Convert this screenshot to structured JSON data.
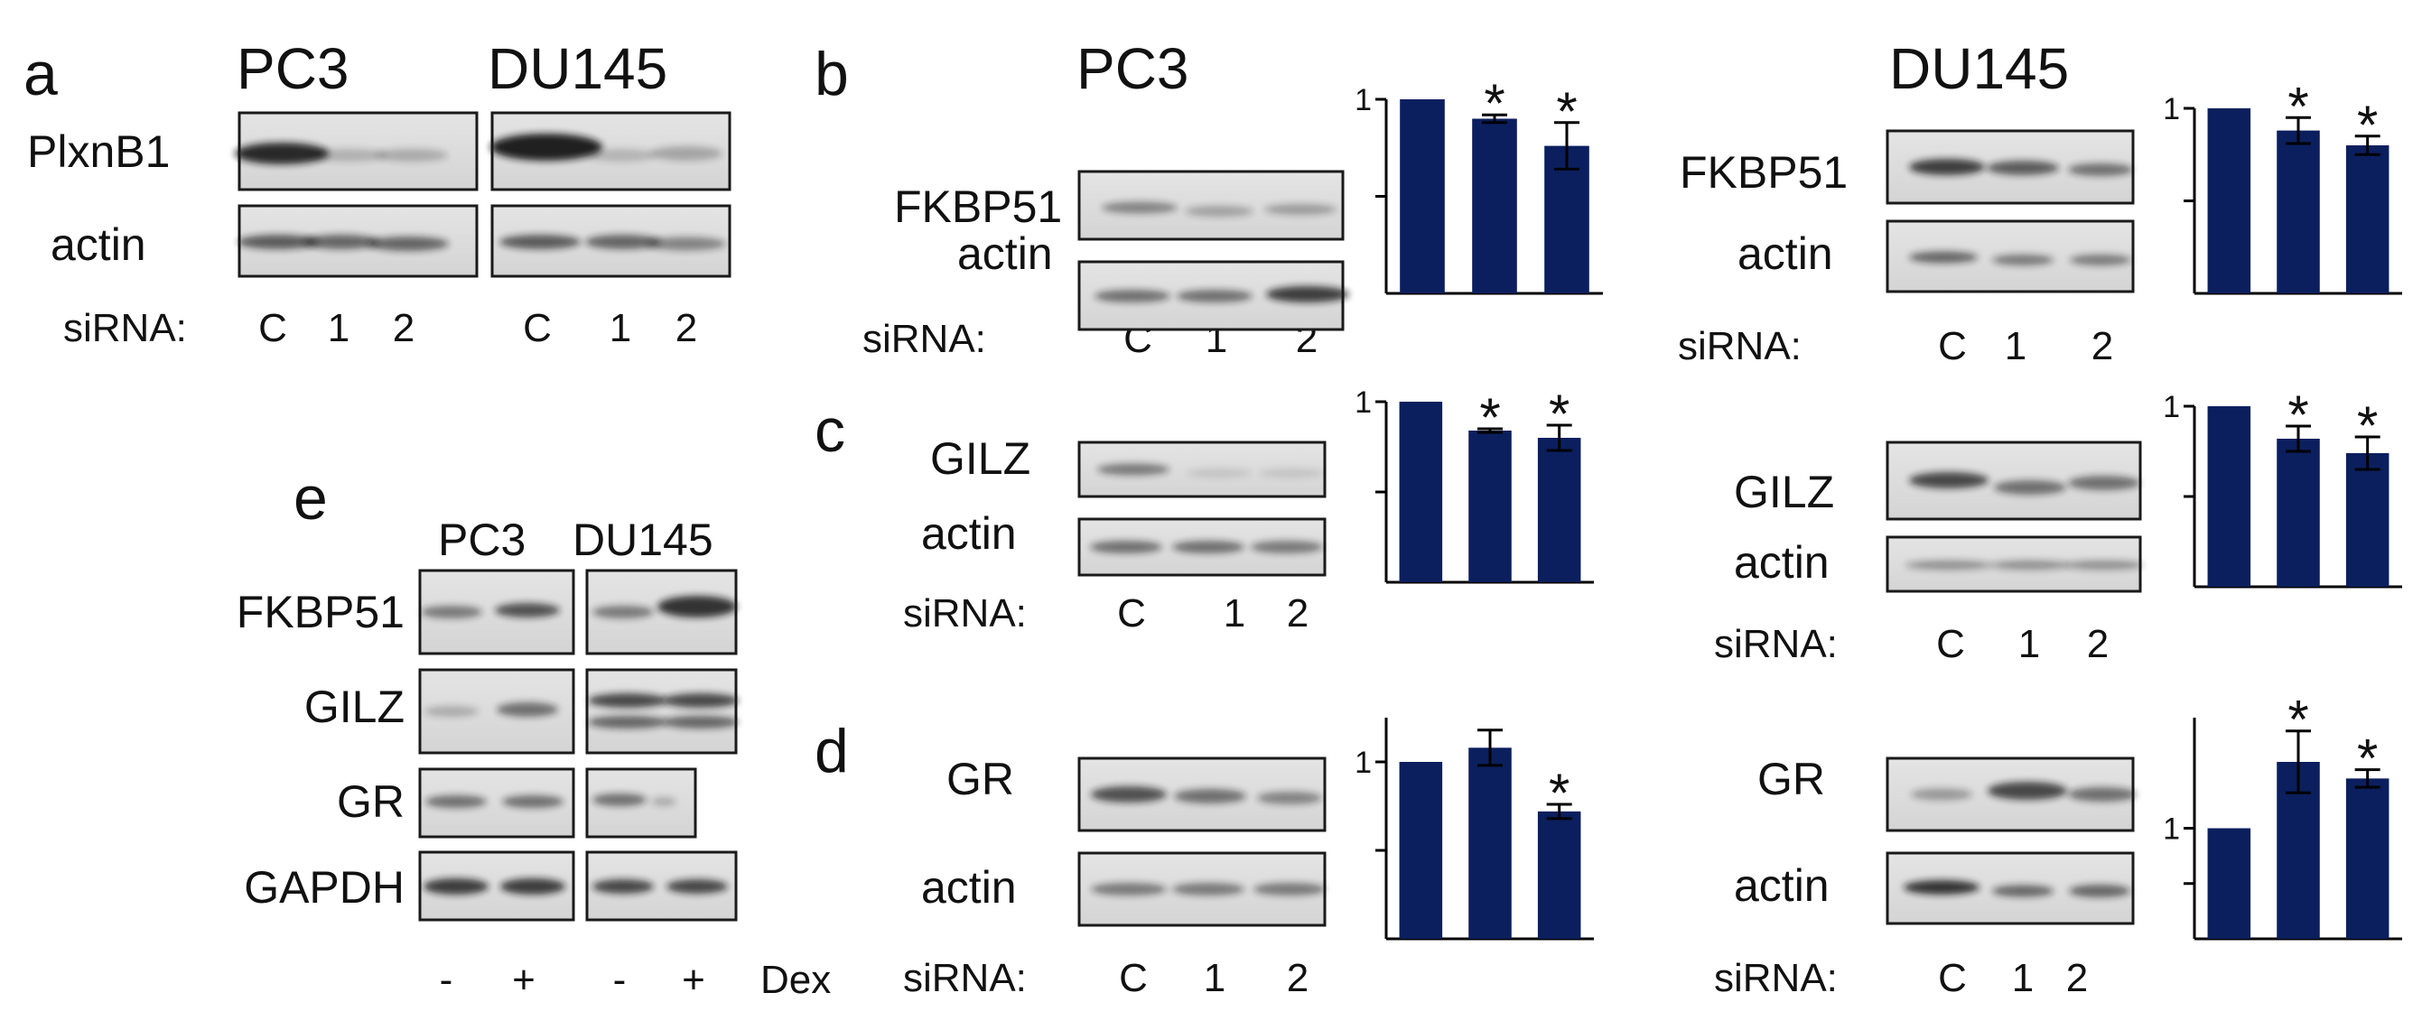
{
  "figure": {
    "panels": {
      "a": "a",
      "b": "b",
      "c": "c",
      "d": "d",
      "e": "e"
    },
    "cell_lines": {
      "pc3": "PC3",
      "du145": "DU145"
    },
    "proteins": {
      "plxnb1": "PlxnB1",
      "actin": "actin",
      "fkbp51": "FKBP51",
      "gilz": "GILZ",
      "gr": "GR",
      "gapdh": "GAPDH"
    },
    "sirna_label": "siRNA:",
    "lanes": {
      "control": "C",
      "si1": "1",
      "si2": "2"
    },
    "treatment": {
      "minus": "-",
      "plus": "+",
      "label": "Dex"
    },
    "significance_marker": "*",
    "axis_tick_one": "1"
  },
  "chart_data": [
    {
      "type": "bar",
      "panel": "b",
      "cell_line": "PC3",
      "protein": "FKBP51",
      "categories": [
        "C",
        "1",
        "2"
      ],
      "values": [
        1.0,
        0.9,
        0.76
      ],
      "errors": [
        0.0,
        0.02,
        0.12
      ],
      "significant": [
        false,
        true,
        true
      ],
      "ylim": [
        0,
        1.0
      ],
      "yticks": [
        0.5,
        1.0
      ],
      "color": "#0b1f5e"
    },
    {
      "type": "bar",
      "panel": "b",
      "cell_line": "DU145",
      "protein": "FKBP51",
      "categories": [
        "C",
        "1",
        "2"
      ],
      "values": [
        1.0,
        0.88,
        0.8
      ],
      "errors": [
        0.0,
        0.07,
        0.05
      ],
      "significant": [
        false,
        true,
        true
      ],
      "ylim": [
        0,
        1.0
      ],
      "yticks": [
        0.5,
        1.0
      ],
      "color": "#0b1f5e"
    },
    {
      "type": "bar",
      "panel": "c",
      "cell_line": "PC3",
      "protein": "GILZ",
      "categories": [
        "C",
        "1",
        "2"
      ],
      "values": [
        1.0,
        0.84,
        0.8
      ],
      "errors": [
        0.0,
        0.01,
        0.07
      ],
      "significant": [
        false,
        true,
        true
      ],
      "ylim": [
        0,
        1.0
      ],
      "yticks": [
        0.5,
        1.0
      ],
      "color": "#0b1f5e"
    },
    {
      "type": "bar",
      "panel": "c",
      "cell_line": "DU145",
      "protein": "GILZ",
      "categories": [
        "C",
        "1",
        "2"
      ],
      "values": [
        1.0,
        0.82,
        0.74
      ],
      "errors": [
        0.0,
        0.07,
        0.09
      ],
      "significant": [
        false,
        true,
        true
      ],
      "ylim": [
        0,
        1.0
      ],
      "yticks": [
        0.5,
        1.0
      ],
      "color": "#0b1f5e"
    },
    {
      "type": "bar",
      "panel": "d",
      "cell_line": "PC3",
      "protein": "GR",
      "categories": [
        "C",
        "1",
        "2"
      ],
      "values": [
        1.0,
        1.08,
        0.72
      ],
      "errors": [
        0.0,
        0.1,
        0.04
      ],
      "significant": [
        false,
        false,
        true
      ],
      "ylim": [
        0,
        1.25
      ],
      "yticks": [
        0.5,
        1.0
      ],
      "color": "#0b1f5e"
    },
    {
      "type": "bar",
      "panel": "d",
      "cell_line": "DU145",
      "protein": "GR",
      "categories": [
        "C",
        "1",
        "2"
      ],
      "values": [
        1.0,
        1.6,
        1.45
      ],
      "errors": [
        0.0,
        0.28,
        0.08
      ],
      "significant": [
        false,
        true,
        true
      ],
      "ylim": [
        0,
        2.0
      ],
      "yticks": [
        0.5,
        1.0
      ],
      "color": "#0b1f5e"
    }
  ]
}
